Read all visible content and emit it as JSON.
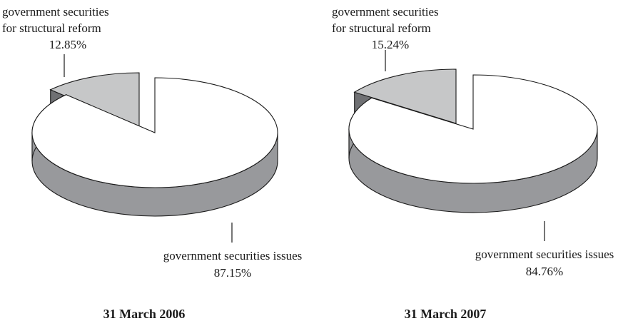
{
  "chart_data": [
    {
      "type": "pie",
      "title": "31 March 2006",
      "slices": [
        {
          "label_lines": [
            "government securities issues"
          ],
          "value": 87.15,
          "value_label": "87.15%"
        },
        {
          "label_lines": [
            "government securities",
            "for structural reform"
          ],
          "value": 12.85,
          "value_label": "12.85%"
        }
      ]
    },
    {
      "type": "pie",
      "title": "31 March 2007",
      "slices": [
        {
          "label_lines": [
            "government securities issues"
          ],
          "value": 84.76,
          "value_label": "84.76%"
        },
        {
          "label_lines": [
            "government securities",
            "for structural reform"
          ],
          "value": 15.24,
          "value_label": "15.24%"
        }
      ]
    }
  ],
  "colors": {
    "major_top": "#ffffff",
    "major_side": "#98999c",
    "minor_top": "#c6c7c8",
    "minor_side": "#6f7073",
    "outline": "#1a1a1a"
  }
}
